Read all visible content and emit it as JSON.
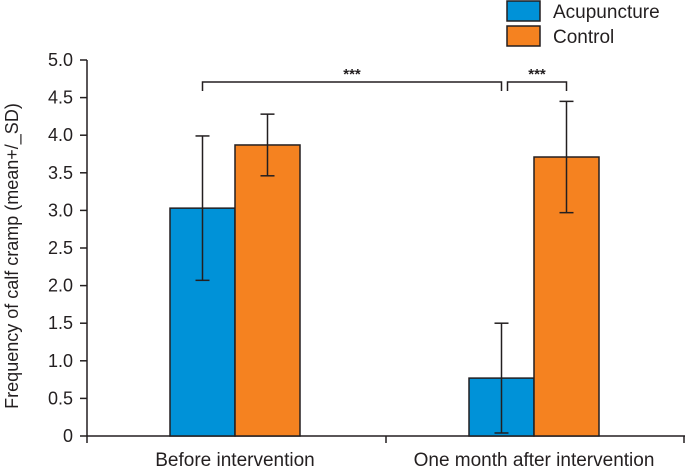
{
  "chart_data": {
    "type": "bar",
    "title": "",
    "xlabel": "",
    "ylabel": "Frequency of calf cramp (mean+/_SD)",
    "ylim": [
      0,
      5.0
    ],
    "yticks": [
      0,
      0.5,
      1.0,
      1.5,
      2.0,
      2.5,
      3.0,
      3.5,
      4.0,
      4.5,
      5.0
    ],
    "ytick_labels": [
      "0",
      "0.5",
      "1.0",
      "1.5",
      "2.0",
      "2.5",
      "3.0",
      "3.5",
      "4.0",
      "4.5",
      "5.0"
    ],
    "categories": [
      "Before intervention",
      "One month after intervention"
    ],
    "series": [
      {
        "name": "Acupuncture",
        "color": "#0092d8",
        "values": [
          3.03,
          0.77
        ],
        "sd": [
          0.96,
          0.73
        ]
      },
      {
        "name": "Control",
        "color": "#f58220",
        "values": [
          3.87,
          3.71
        ],
        "sd": [
          0.41,
          0.74
        ]
      }
    ],
    "legend": {
      "placement": "top-right",
      "entries": [
        "Acupuncture",
        "Control"
      ]
    },
    "significance": [
      {
        "label": "***",
        "between": "Acupuncture Before intervention vs Acupuncture One month after intervention"
      },
      {
        "label": "***",
        "between": "Acupuncture vs Control One month after intervention"
      }
    ],
    "grid": false
  }
}
